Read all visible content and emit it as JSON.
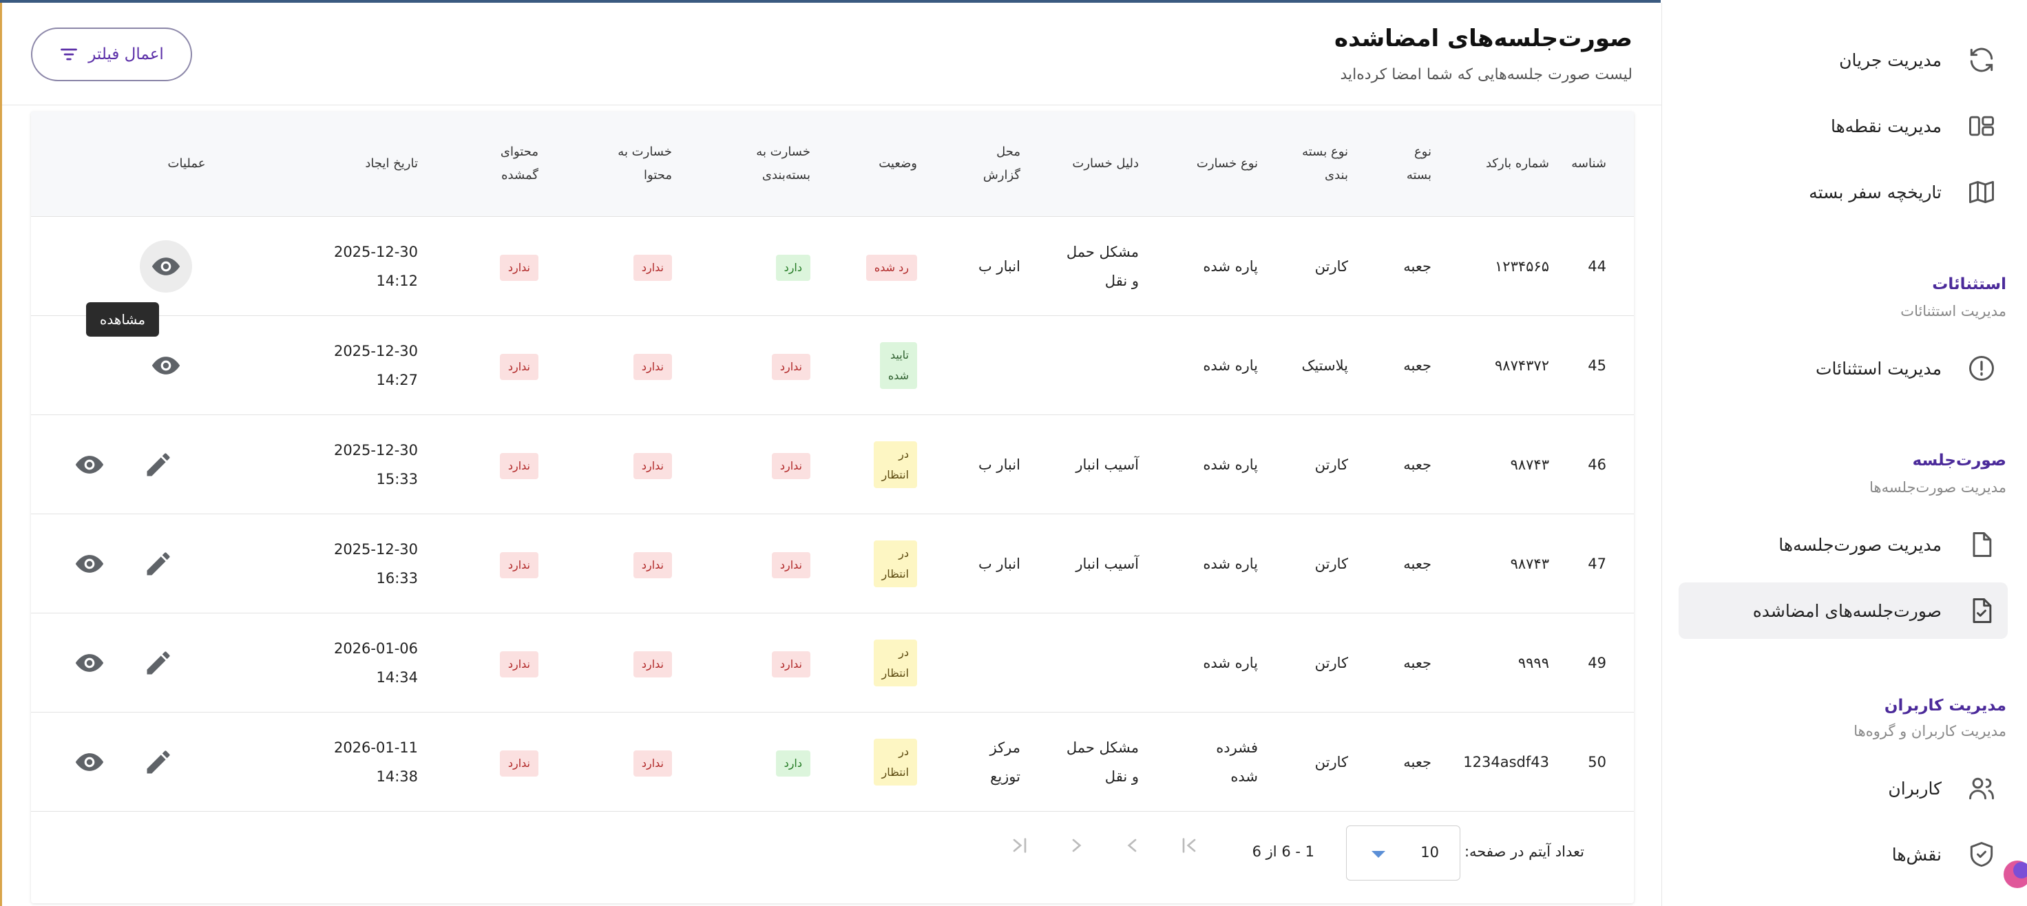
{
  "page": {
    "title": "صورت‌جلسه‌های امضاشده",
    "subtitle": "لیست صورت جلسه‌هایی که شما امضا کرده‌اید",
    "filter_button": "اعمال فیلتر"
  },
  "table": {
    "headers": {
      "id": "شناسه",
      "barcode": "شماره بارکد",
      "package_type": "نوع\nبسته",
      "packaging_type": "نوع بسته\nبندی",
      "damage_type": "نوع خسارت",
      "damage_reason": "دلیل خسارت",
      "report_location": "محل\nگزارش",
      "status": "وضعیت",
      "packaging_damage": "خسارت به\nبسته‌بندی",
      "content_damage": "خسارت به\nمحتوا",
      "lost_content": "محتوای\nگمشده",
      "created_at": "تاریخ ایجاد",
      "actions": "عملیات"
    },
    "rows": [
      {
        "id": "44",
        "barcode": "۱۲۳۴۵۶۵",
        "package_type": "جعبه",
        "packaging_type": "کارتن",
        "damage_type": "پاره شده",
        "damage_reason": "مشکل حمل\nو نقل",
        "report_location": "انبار ب",
        "status": "رد شده",
        "packaging_damage": "دارد",
        "content_damage": "ندارد",
        "lost_content": "ندارد",
        "created_date": "2025-12-30",
        "created_time": "14:12"
      },
      {
        "id": "45",
        "barcode": "۹۸۷۴۳۷۲",
        "package_type": "جعبه",
        "packaging_type": "پلاستیک",
        "damage_type": "پاره شده",
        "damage_reason": "",
        "report_location": "",
        "status": "تایید\nشده",
        "packaging_damage": "ندارد",
        "content_damage": "ندارد",
        "lost_content": "ندارد",
        "created_date": "2025-12-30",
        "created_time": "14:27"
      },
      {
        "id": "46",
        "barcode": "۹۸۷۴۳",
        "package_type": "جعبه",
        "packaging_type": "کارتن",
        "damage_type": "پاره شده",
        "damage_reason": "آسیب انبار",
        "report_location": "انبار ب",
        "status": "در\nانتظار",
        "packaging_damage": "ندارد",
        "content_damage": "ندارد",
        "lost_content": "ندارد",
        "created_date": "2025-12-30",
        "created_time": "15:33"
      },
      {
        "id": "47",
        "barcode": "۹۸۷۴۳",
        "package_type": "جعبه",
        "packaging_type": "کارتن",
        "damage_type": "پاره شده",
        "damage_reason": "آسیب انبار",
        "report_location": "انبار ب",
        "status": "در\nانتظار",
        "packaging_damage": "ندارد",
        "content_damage": "ندارد",
        "lost_content": "ندارد",
        "created_date": "2025-12-30",
        "created_time": "16:33"
      },
      {
        "id": "49",
        "barcode": "۹۹۹۹",
        "package_type": "جعبه",
        "packaging_type": "کارتن",
        "damage_type": "پاره شده",
        "damage_reason": "",
        "report_location": "",
        "status": "در\nانتظار",
        "packaging_damage": "ندارد",
        "content_damage": "ندارد",
        "lost_content": "ندارد",
        "created_date": "2026-01-06",
        "created_time": "14:34"
      },
      {
        "id": "50",
        "barcode": "1234asdf43",
        "package_type": "جعبه",
        "packaging_type": "کارتن",
        "damage_type": "فشرده\nشده",
        "damage_reason": "مشکل حمل\nو نقل",
        "report_location": "مرکز\nتوزیع",
        "status": "در\nانتظار",
        "packaging_damage": "دارد",
        "content_damage": "ندارد",
        "lost_content": "ندارد",
        "created_date": "2026-01-11",
        "created_time": "14:38"
      }
    ],
    "tooltip": "مشاهده"
  },
  "pagination": {
    "items_per_page_label": "تعداد آیتم در صفحه:",
    "items_per_page_value": "10",
    "range": "1 - 6 از 6"
  },
  "sidebar": {
    "items_top": [
      {
        "label": "مدیریت جریان",
        "icon": "refresh-icon"
      },
      {
        "label": "مدیریت نقطه‌ها",
        "icon": "layout-icon"
      },
      {
        "label": "تاریخچه سفر بسته",
        "icon": "map-icon"
      }
    ],
    "sections": [
      {
        "title": "استثنائات",
        "subtitle": "مدیریت استثنائات",
        "items": [
          {
            "label": "مدیریت استثنائات",
            "icon": "alert-circle-icon"
          }
        ]
      },
      {
        "title": "صورت‌جلسه",
        "subtitle": "مدیریت صورت‌جلسه‌ها",
        "items": [
          {
            "label": "مدیریت صورت‌جلسه‌ها",
            "icon": "file-icon"
          },
          {
            "label": "صورت‌جلسه‌های امضاشده",
            "icon": "file-check-icon"
          }
        ]
      },
      {
        "title": "مدیریت کاربران",
        "subtitle": "مدیریت کاربران و گروه‌ها",
        "items": [
          {
            "label": "کاربران",
            "icon": "users-icon"
          },
          {
            "label": "نقش‌ها",
            "icon": "shield-check-icon"
          }
        ]
      }
    ]
  }
}
